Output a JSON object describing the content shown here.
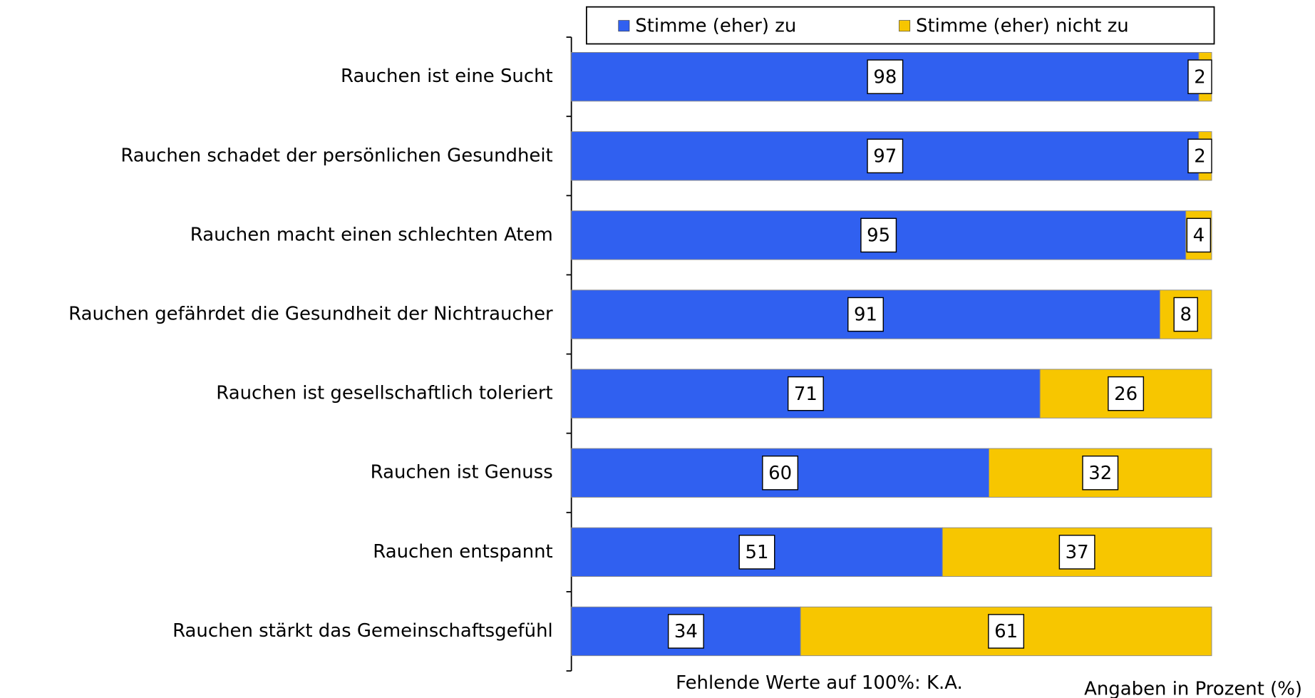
{
  "chart_data": {
    "type": "bar",
    "orientation": "horizontal",
    "stacked": "percent",
    "categories": [
      "Rauchen ist eine Sucht",
      "Rauchen schadet der persönlichen Gesundheit",
      "Rauchen macht einen schlechten Atem",
      "Rauchen gefährdet die Gesundheit der Nichtraucher",
      "Rauchen ist gesellschaftlich toleriert",
      "Rauchen ist Genuss",
      "Rauchen entspannt",
      "Rauchen stärkt das Gemeinschaftsgefühl"
    ],
    "series": [
      {
        "name": "Stimme (eher) zu",
        "color": "#3060f0",
        "values": [
          98,
          97,
          95,
          91,
          71,
          60,
          51,
          34
        ]
      },
      {
        "name": "Stimme (eher) nicht zu",
        "color": "#f7c600",
        "values": [
          2,
          2,
          4,
          8,
          26,
          32,
          37,
          61
        ]
      }
    ],
    "legend": "top",
    "note": "Fehlende Werte auf 100%: K.A.",
    "unit_note": "Angaben in Prozent (%)"
  }
}
